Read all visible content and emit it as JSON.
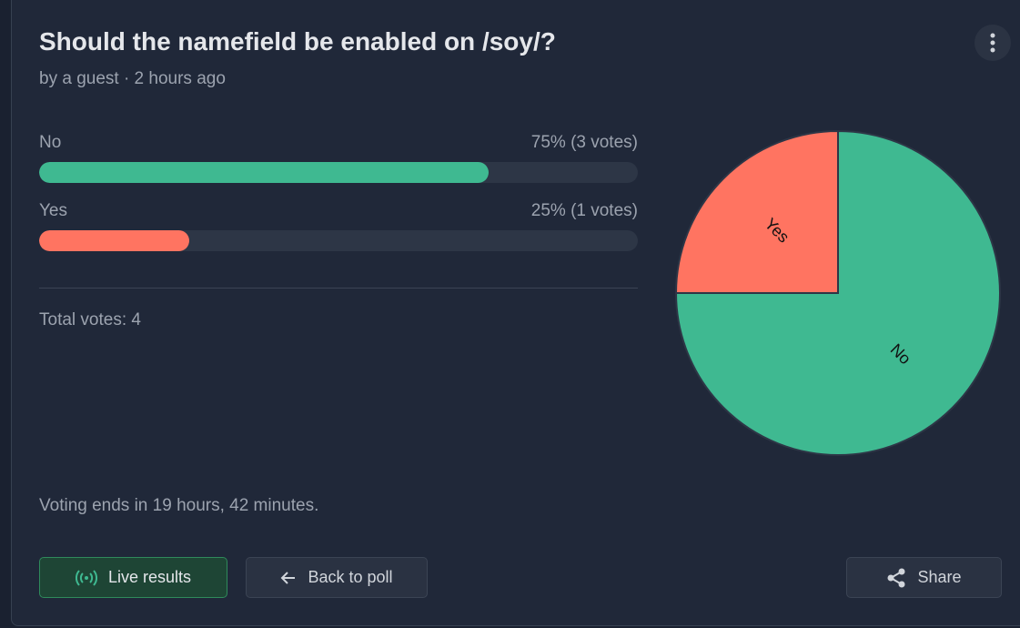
{
  "header": {
    "title": "Should the namefield be enabled on /soy/?",
    "byline": "by a guest · 2 hours ago"
  },
  "chart_data": {
    "type": "pie",
    "categories": [
      "No",
      "Yes"
    ],
    "values": [
      75,
      25
    ],
    "value_labels": [
      "75% (3 votes)",
      "25% (1 votes)"
    ],
    "colors": [
      "#3fb991",
      "#ff7461"
    ]
  },
  "footer": {
    "total": "Total votes: 4",
    "ends": "Voting ends in 19 hours, 42 minutes."
  },
  "buttons": {
    "live": "Live results",
    "back": "Back to poll",
    "share": "Share"
  }
}
